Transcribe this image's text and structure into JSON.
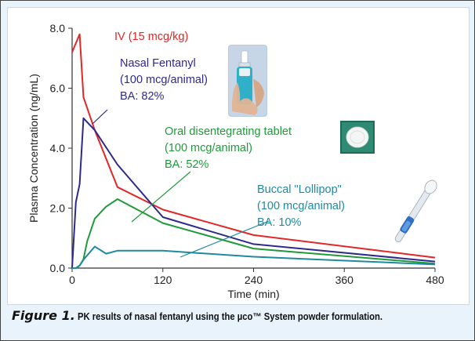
{
  "chart_data": {
    "type": "line",
    "xlabel": "Time (min)",
    "ylabel": "Plasma Concentration (ng/mL)",
    "xlim": [
      0,
      480
    ],
    "ylim": [
      0,
      8
    ],
    "xticks": [
      0,
      120,
      240,
      360,
      480
    ],
    "xtick_labels": [
      "0",
      "120",
      "240",
      "360",
      "480"
    ],
    "yticks": [
      0,
      2,
      4,
      6,
      8
    ],
    "ytick_labels": [
      "0.0",
      "2.0",
      "4.0",
      "6.0",
      "8.0"
    ],
    "grid": false,
    "series": [
      {
        "id": "iv",
        "color": "#e32626",
        "x": [
          0,
          5,
          10,
          15,
          30,
          60,
          120,
          240,
          480
        ],
        "y": [
          7.2,
          7.5,
          7.8,
          5.7,
          4.6,
          2.7,
          1.95,
          1.1,
          0.35
        ],
        "label_lines": [
          "IV (15 mcg/kg)"
        ]
      },
      {
        "id": "nasal",
        "color": "#2e2a8a",
        "x": [
          0,
          5,
          10,
          15,
          30,
          60,
          120,
          240,
          480
        ],
        "y": [
          0,
          2.2,
          2.8,
          5.0,
          4.6,
          3.45,
          1.7,
          0.8,
          0.22
        ],
        "label_lines": [
          "Nasal Fentanyl",
          "(100 mcg/animal)",
          "BA: 82%"
        ]
      },
      {
        "id": "odt",
        "color": "#1f9a3a",
        "x": [
          0,
          5,
          10,
          15,
          20,
          30,
          45,
          60,
          120,
          240,
          480
        ],
        "y": [
          0,
          0,
          0.08,
          0.3,
          0.9,
          1.65,
          2.05,
          2.3,
          1.5,
          0.65,
          0.15
        ],
        "label_lines": [
          "Oral disentegrating tablet",
          "(100 mcg/animal)",
          "BA: 52%"
        ]
      },
      {
        "id": "buccal",
        "color": "#1f8a9e",
        "x": [
          0,
          5,
          10,
          15,
          30,
          45,
          60,
          120,
          240,
          480
        ],
        "y": [
          0,
          0,
          0.08,
          0.28,
          0.72,
          0.48,
          0.58,
          0.58,
          0.38,
          0.12
        ],
        "label_lines": [
          "Buccal \"Lollipop\"",
          "(100 mcg/animal)",
          "BA: 10%"
        ]
      }
    ]
  },
  "caption": {
    "label": "Figure 1.",
    "text": "PK results of nasal fentanyl using the µco™ System powder formulation."
  },
  "images": [
    {
      "name": "nasal-spray-photo"
    },
    {
      "name": "tablet-photo"
    },
    {
      "name": "lollipop-device-photo"
    }
  ]
}
